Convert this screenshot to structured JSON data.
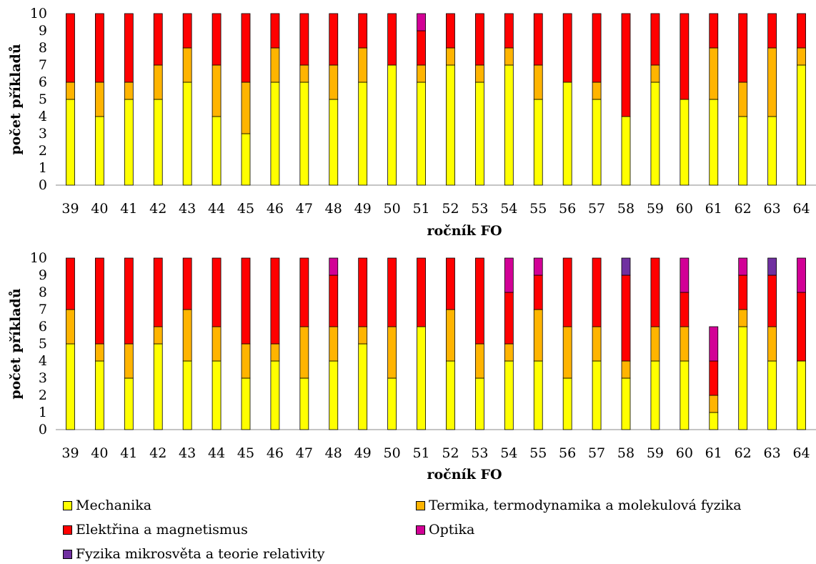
{
  "colors": {
    "mechanika": "#ffff00",
    "termika": "#ffb400",
    "elektrina": "#ff0000",
    "optika": "#d20096",
    "fyzika_mikrosveta": "#7030a0"
  },
  "legend": [
    {
      "key": "mechanika",
      "label": "Mechanika"
    },
    {
      "key": "termika",
      "label": "Termika, termodynamika a molekulová fyzika"
    },
    {
      "key": "elektrina",
      "label": "Elektřina a magnetismus"
    },
    {
      "key": "optika",
      "label": "Optika"
    },
    {
      "key": "fyzika_mikrosveta",
      "label": "Fyzika mikrosvěta a teorie relativity"
    }
  ],
  "chart_data": [
    {
      "type": "bar",
      "stacked": true,
      "xlabel": "ročník FO",
      "ylabel": "počet příkladů",
      "ylim": [
        0,
        10
      ],
      "yticks": [
        "0",
        "1",
        "2",
        "3",
        "4",
        "5",
        "6",
        "7",
        "8",
        "9",
        "10"
      ],
      "categories": [
        "39",
        "40",
        "41",
        "42",
        "43",
        "44",
        "45",
        "46",
        "47",
        "48",
        "49",
        "50",
        "51",
        "52",
        "53",
        "54",
        "55",
        "56",
        "57",
        "58",
        "59",
        "60",
        "61",
        "62",
        "63",
        "64"
      ],
      "series": [
        {
          "key": "mechanika",
          "values": [
            5,
            4,
            5,
            5,
            6,
            4,
            3,
            6,
            6,
            5,
            6,
            7,
            6,
            7,
            6,
            7,
            5,
            6,
            5,
            4,
            6,
            5,
            5,
            4,
            4,
            7
          ]
        },
        {
          "key": "termika",
          "values": [
            1,
            2,
            1,
            2,
            2,
            3,
            3,
            2,
            1,
            2,
            2,
            0,
            1,
            1,
            1,
            1,
            2,
            0,
            1,
            0,
            1,
            0,
            3,
            2,
            4,
            1
          ]
        },
        {
          "key": "elektrina",
          "values": [
            4,
            4,
            4,
            3,
            2,
            3,
            4,
            2,
            3,
            3,
            2,
            3,
            2,
            2,
            3,
            2,
            3,
            4,
            4,
            6,
            3,
            5,
            2,
            4,
            2,
            2
          ]
        },
        {
          "key": "optika",
          "values": [
            0,
            0,
            0,
            0,
            0,
            0,
            0,
            0,
            0,
            0,
            0,
            0,
            1,
            0,
            0,
            0,
            0,
            0,
            0,
            0,
            0,
            0,
            0,
            0,
            0,
            0
          ]
        },
        {
          "key": "fyzika_mikrosveta",
          "values": [
            0,
            0,
            0,
            0,
            0,
            0,
            0,
            0,
            0,
            0,
            0,
            0,
            0,
            0,
            0,
            0,
            0,
            0,
            0,
            0,
            0,
            0,
            0,
            0,
            0,
            0
          ]
        }
      ]
    },
    {
      "type": "bar",
      "stacked": true,
      "xlabel": "ročník FO",
      "ylabel": "počet příkladů",
      "ylim": [
        0,
        10
      ],
      "yticks": [
        "0",
        "1",
        "2",
        "3",
        "4",
        "5",
        "6",
        "7",
        "8",
        "9",
        "10"
      ],
      "categories": [
        "39",
        "40",
        "41",
        "42",
        "43",
        "44",
        "45",
        "46",
        "47",
        "48",
        "49",
        "50",
        "51",
        "52",
        "53",
        "54",
        "55",
        "56",
        "57",
        "58",
        "59",
        "60",
        "61",
        "62",
        "63",
        "64"
      ],
      "series": [
        {
          "key": "mechanika",
          "values": [
            5,
            4,
            3,
            5,
            4,
            4,
            3,
            4,
            3,
            4,
            5,
            3,
            6,
            4,
            3,
            4,
            4,
            3,
            4,
            3,
            4,
            4,
            1,
            6,
            4,
            4
          ]
        },
        {
          "key": "termika",
          "values": [
            2,
            1,
            2,
            1,
            3,
            2,
            2,
            1,
            3,
            2,
            1,
            3,
            0,
            3,
            2,
            1,
            3,
            3,
            2,
            1,
            2,
            2,
            1,
            1,
            2,
            0
          ]
        },
        {
          "key": "elektrina",
          "values": [
            3,
            5,
            5,
            4,
            3,
            4,
            5,
            5,
            4,
            3,
            4,
            4,
            4,
            3,
            5,
            3,
            2,
            4,
            4,
            5,
            4,
            2,
            2,
            2,
            3,
            4
          ]
        },
        {
          "key": "optika",
          "values": [
            0,
            0,
            0,
            0,
            0,
            0,
            0,
            0,
            0,
            1,
            0,
            0,
            0,
            0,
            0,
            2,
            1,
            0,
            0,
            0,
            0,
            2,
            2,
            1,
            0,
            2
          ]
        },
        {
          "key": "fyzika_mikrosveta",
          "values": [
            0,
            0,
            0,
            0,
            0,
            0,
            0,
            0,
            0,
            0,
            0,
            0,
            0,
            0,
            0,
            0,
            0,
            0,
            0,
            1,
            0,
            0,
            0,
            0,
            1,
            0
          ]
        }
      ]
    }
  ]
}
